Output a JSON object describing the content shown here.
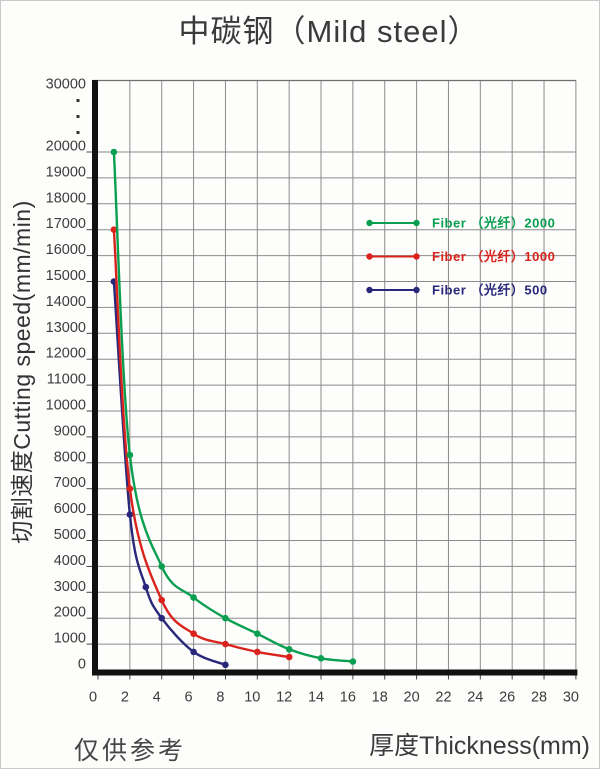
{
  "page": {
    "title": "中碳钢（Mild steel）",
    "footnote": "仅供参考"
  },
  "chart_data": {
    "type": "line",
    "title": "中碳钢（Mild steel）",
    "xlabel": "厚度Thickness(mm)",
    "ylabel": "切割速度Cutting speed(mm/min)",
    "x_ticks": [
      0,
      2,
      4,
      6,
      8,
      10,
      12,
      14,
      16,
      18,
      20,
      22,
      24,
      26,
      28,
      30
    ],
    "y_ticks": [
      0,
      1000,
      2000,
      3000,
      4000,
      5000,
      6000,
      7000,
      8000,
      9000,
      10000,
      11000,
      12000,
      13000,
      14000,
      15000,
      16000,
      17000,
      18000,
      19000,
      20000
    ],
    "y_axis_break": {
      "top_tick": "30000",
      "dot_count": 3
    },
    "xlim": [
      0,
      30
    ],
    "ylim": [
      0,
      30000
    ],
    "grid": true,
    "legend_position": "upper-right-inside",
    "series": [
      {
        "name": "Fiber （光纤）2000",
        "color": "#0a9f50",
        "points": [
          [
            1,
            20000
          ],
          [
            2,
            8300
          ],
          [
            4,
            4000
          ],
          [
            6,
            2800
          ],
          [
            8,
            2000
          ],
          [
            10,
            1400
          ],
          [
            12,
            800
          ],
          [
            14,
            450
          ],
          [
            16,
            330
          ]
        ]
      },
      {
        "name": "Fiber （光纤）1000",
        "color": "#d9231c",
        "points": [
          [
            1,
            17000
          ],
          [
            2,
            7000
          ],
          [
            4,
            2700
          ],
          [
            6,
            1400
          ],
          [
            8,
            1000
          ],
          [
            10,
            700
          ],
          [
            12,
            500
          ]
        ]
      },
      {
        "name": "Fiber （光纤）500",
        "color": "#28277a",
        "points": [
          [
            1,
            15000
          ],
          [
            2,
            6000
          ],
          [
            3,
            3200
          ],
          [
            4,
            2000
          ],
          [
            6,
            700
          ],
          [
            8,
            200
          ]
        ]
      }
    ],
    "colors": {
      "grid": "#8b8b8b",
      "axis": "#111111",
      "tick_text": "#3c3c3c",
      "title_text": "#3a3a3a"
    }
  }
}
